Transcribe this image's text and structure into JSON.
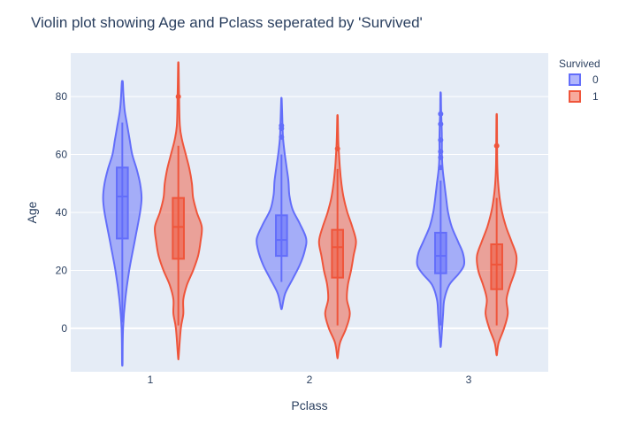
{
  "chart_data": {
    "type": "violin",
    "title": "Violin plot showing Age and Pclass seperated by 'Survived'",
    "xlabel": "Pclass",
    "ylabel": "Age",
    "categories": [
      "1",
      "2",
      "3"
    ],
    "ylim": [
      -15,
      95
    ],
    "yticks": [
      0,
      20,
      40,
      60,
      80
    ],
    "grid": true,
    "legend_title": "Survived",
    "legend_position": "top-right",
    "series": [
      {
        "name": "0",
        "color": "#636efa",
        "violins": [
          {
            "category": "1",
            "range": [
              -12,
              85
            ],
            "box": {
              "q1": 31,
              "median": 45.5,
              "q3": 55.5,
              "lower_fence": 2,
              "upper_fence": 71
            },
            "outliers": [],
            "density": [
              [
                -12,
                0.01
              ],
              [
                0,
                0.03
              ],
              [
                10,
                0.12
              ],
              [
                20,
                0.28
              ],
              [
                30,
                0.5
              ],
              [
                40,
                0.72
              ],
              [
                45,
                0.78
              ],
              [
                50,
                0.72
              ],
              [
                55,
                0.58
              ],
              [
                60,
                0.4
              ],
              [
                65,
                0.3
              ],
              [
                70,
                0.2
              ],
              [
                75,
                0.1
              ],
              [
                80,
                0.05
              ],
              [
                85,
                0.02
              ]
            ]
          },
          {
            "category": "2",
            "range": [
              7,
              79
            ],
            "box": {
              "q1": 25,
              "median": 30.5,
              "q3": 39,
              "lower_fence": 16,
              "upper_fence": 60
            },
            "outliers": [
              66,
              69,
              70
            ],
            "density": [
              [
                7,
                0.02
              ],
              [
                12,
                0.15
              ],
              [
                17,
                0.45
              ],
              [
                22,
                0.75
              ],
              [
                27,
                0.95
              ],
              [
                31,
                1.0
              ],
              [
                36,
                0.75
              ],
              [
                41,
                0.45
              ],
              [
                46,
                0.32
              ],
              [
                51,
                0.28
              ],
              [
                56,
                0.2
              ],
              [
                61,
                0.12
              ],
              [
                66,
                0.06
              ],
              [
                71,
                0.04
              ],
              [
                79,
                0.01
              ]
            ]
          },
          {
            "category": "3",
            "range": [
              -6,
              81
            ],
            "box": {
              "q1": 19,
              "median": 25,
              "q3": 33,
              "lower_fence": 1,
              "upper_fence": 51
            },
            "outliers": [
              55.5,
              59,
              61,
              65,
              70.5,
              74
            ],
            "density": [
              [
                -6,
                0.01
              ],
              [
                0,
                0.06
              ],
              [
                5,
                0.1
              ],
              [
                10,
                0.15
              ],
              [
                15,
                0.35
              ],
              [
                19,
                0.75
              ],
              [
                22,
                0.95
              ],
              [
                26,
                0.9
              ],
              [
                30,
                0.7
              ],
              [
                35,
                0.45
              ],
              [
                40,
                0.3
              ],
              [
                45,
                0.22
              ],
              [
                50,
                0.15
              ],
              [
                55,
                0.08
              ],
              [
                60,
                0.05
              ],
              [
                65,
                0.05
              ],
              [
                70,
                0.04
              ],
              [
                75,
                0.02
              ],
              [
                81,
                0.01
              ]
            ]
          }
        ]
      },
      {
        "name": "1",
        "color": "#ef553b",
        "violins": [
          {
            "category": "1",
            "range": [
              -10,
              91
            ],
            "box": {
              "q1": 24,
              "median": 35,
              "q3": 45,
              "lower_fence": 1,
              "upper_fence": 63
            },
            "outliers": [
              80
            ],
            "density": [
              [
                -10,
                0.01
              ],
              [
                0,
                0.1
              ],
              [
                5,
                0.2
              ],
              [
                10,
                0.2
              ],
              [
                15,
                0.35
              ],
              [
                20,
                0.6
              ],
              [
                25,
                0.8
              ],
              [
                30,
                0.9
              ],
              [
                35,
                0.95
              ],
              [
                40,
                0.75
              ],
              [
                45,
                0.6
              ],
              [
                50,
                0.55
              ],
              [
                55,
                0.45
              ],
              [
                60,
                0.3
              ],
              [
                65,
                0.15
              ],
              [
                70,
                0.06
              ],
              [
                80,
                0.03
              ],
              [
                91,
                0.01
              ]
            ]
          },
          {
            "category": "2",
            "range": [
              -10,
              73
            ],
            "box": {
              "q1": 17.5,
              "median": 28,
              "q3": 34,
              "lower_fence": 1,
              "upper_fence": 55
            },
            "outliers": [
              62
            ],
            "density": [
              [
                -10,
                0.01
              ],
              [
                -5,
                0.1
              ],
              [
                0,
                0.35
              ],
              [
                5,
                0.5
              ],
              [
                10,
                0.38
              ],
              [
                15,
                0.42
              ],
              [
                20,
                0.55
              ],
              [
                25,
                0.65
              ],
              [
                30,
                0.75
              ],
              [
                35,
                0.6
              ],
              [
                40,
                0.4
              ],
              [
                45,
                0.25
              ],
              [
                50,
                0.16
              ],
              [
                55,
                0.1
              ],
              [
                60,
                0.06
              ],
              [
                65,
                0.03
              ],
              [
                73,
                0.01
              ]
            ]
          },
          {
            "category": "3",
            "range": [
              -9,
              73
            ],
            "box": {
              "q1": 13.5,
              "median": 22,
              "q3": 29,
              "lower_fence": 1,
              "upper_fence": 45
            },
            "outliers": [
              63
            ],
            "density": [
              [
                -9,
                0.01
              ],
              [
                -5,
                0.08
              ],
              [
                0,
                0.3
              ],
              [
                5,
                0.45
              ],
              [
                10,
                0.4
              ],
              [
                15,
                0.55
              ],
              [
                20,
                0.75
              ],
              [
                25,
                0.8
              ],
              [
                30,
                0.6
              ],
              [
                35,
                0.38
              ],
              [
                40,
                0.22
              ],
              [
                45,
                0.12
              ],
              [
                50,
                0.06
              ],
              [
                55,
                0.03
              ],
              [
                60,
                0.02
              ],
              [
                73,
                0.01
              ]
            ]
          }
        ]
      }
    ]
  }
}
